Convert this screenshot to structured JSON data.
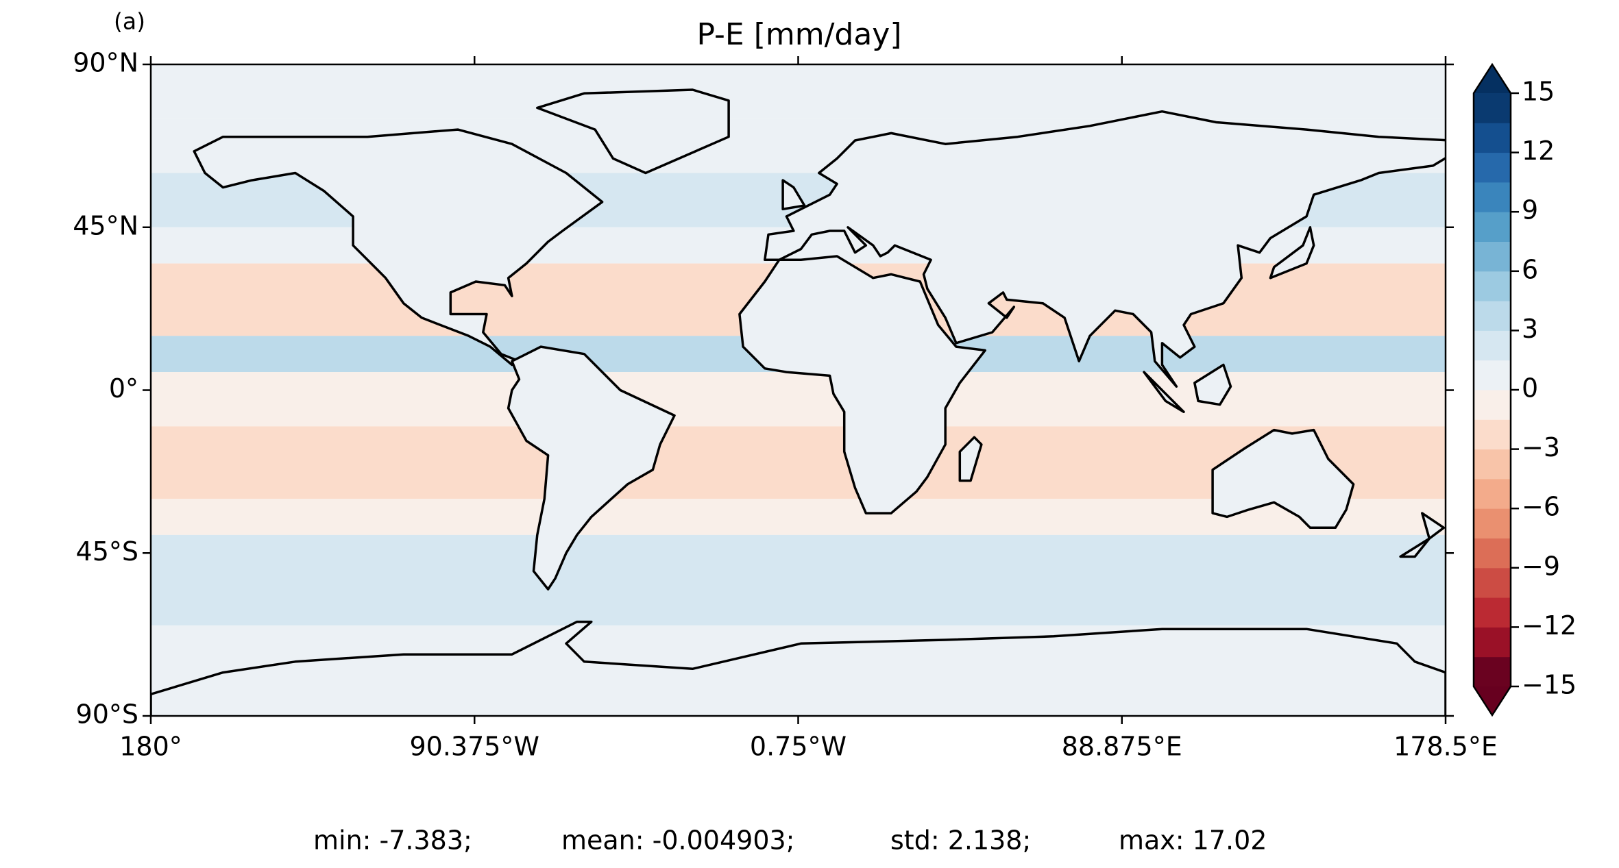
{
  "chart_data": {
    "type": "map",
    "panel_label": "(a)",
    "title": "P-E [mm/day]",
    "xlim": [
      -180,
      178.5
    ],
    "ylim": [
      -90,
      90
    ],
    "xticks": [
      {
        "value": -180,
        "label": "180°"
      },
      {
        "value": -90.375,
        "label": "90.375°W"
      },
      {
        "value": -0.75,
        "label": "0.75°W"
      },
      {
        "value": 88.875,
        "label": "88.875°E"
      },
      {
        "value": 178.5,
        "label": "178.5°E"
      }
    ],
    "yticks": [
      {
        "value": 90,
        "label": "90°N"
      },
      {
        "value": 45,
        "label": "45°N"
      },
      {
        "value": 0,
        "label": "0°"
      },
      {
        "value": -45,
        "label": "45°S"
      },
      {
        "value": -90,
        "label": "90°S"
      }
    ],
    "bands": {
      "lat_edges": [
        90,
        75,
        60,
        45,
        35,
        15,
        5,
        0,
        -10,
        -30,
        -40,
        -65,
        -90
      ],
      "values": [
        0.5,
        1,
        2,
        0.5,
        -3,
        3,
        -1.5,
        -1,
        -3,
        -1,
        1.5,
        0.5
      ]
    },
    "colorbar": {
      "levels": [
        -15,
        -13.5,
        -12,
        -10.5,
        -9,
        -7.5,
        -6,
        -4.5,
        -3,
        -1.5,
        0,
        1.5,
        3,
        4.5,
        6,
        7.5,
        9,
        10.5,
        12,
        13.5,
        15
      ],
      "colors": [
        "#6a0220",
        "#9a1127",
        "#bb2a33",
        "#cc4c44",
        "#dc6e57",
        "#ea9070",
        "#f3ab8b",
        "#f8c4a9",
        "#fbdccb",
        "#f9efe9",
        "#ecf1f5",
        "#d6e7f1",
        "#bcdaea",
        "#9ccae1",
        "#78b4d5",
        "#569fc9",
        "#3a85bc",
        "#2669ab",
        "#144f8f",
        "#0a3a70"
      ],
      "under_color": "#67001f",
      "over_color": "#053061",
      "ticks": [
        15,
        12,
        9,
        6,
        3,
        0,
        {
          "value": -3,
          "label": "−3"
        },
        {
          "value": -6,
          "label": "−6"
        },
        {
          "value": -9,
          "label": "−9"
        },
        {
          "value": -12,
          "label": "−12"
        },
        {
          "value": -15,
          "label": "−15"
        }
      ]
    },
    "stats": [
      "min: -7.383;",
      "mean: -0.004903;",
      "std: 2.138;",
      "max: 17.02"
    ]
  }
}
